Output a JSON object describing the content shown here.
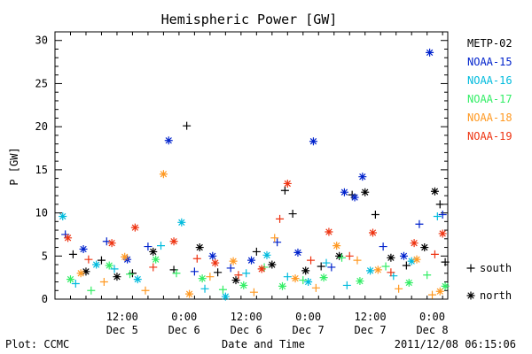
{
  "chart_data": {
    "type": "scatter",
    "title": "Hemispheric Power [GW]",
    "ylabel": "P [GW]",
    "xlabel": "Date and Time",
    "ylim": [
      0,
      31
    ],
    "yticks": [
      0,
      5,
      10,
      15,
      20,
      25,
      30
    ],
    "xlim": [
      "2011-12-04T23:00",
      "2011-12-08T03:00"
    ],
    "xticks": [
      {
        "time": "2011-12-05T12:00",
        "line1": "12:00",
        "line2": "Dec 5"
      },
      {
        "time": "2011-12-06T00:00",
        "line1": "0:00",
        "line2": "Dec 6"
      },
      {
        "time": "2011-12-06T12:00",
        "line1": "12:00",
        "line2": "Dec 6"
      },
      {
        "time": "2011-12-07T00:00",
        "line1": "0:00",
        "line2": "Dec 7"
      },
      {
        "time": "2011-12-07T12:00",
        "line1": "12:00",
        "line2": "Dec 7"
      },
      {
        "time": "2011-12-08T00:00",
        "line1": "0:00",
        "line2": "Dec 8"
      }
    ],
    "grid": false,
    "legend_position": "right",
    "marker_legend": [
      {
        "symbol": "+",
        "label": "south"
      },
      {
        "symbol": "*",
        "label": "north"
      }
    ],
    "series": [
      {
        "name": "METP-02",
        "color": "#000000",
        "points": [
          [
            "2011-12-05T02:30",
            5.2,
            "+"
          ],
          [
            "2011-12-05T05:00",
            3.2,
            "*"
          ],
          [
            "2011-12-05T08:00",
            4.5,
            "+"
          ],
          [
            "2011-12-05T11:00",
            2.6,
            "*"
          ],
          [
            "2011-12-05T14:00",
            3.0,
            "+"
          ],
          [
            "2011-12-05T18:00",
            5.5,
            "*"
          ],
          [
            "2011-12-05T22:00",
            3.4,
            "+"
          ],
          [
            "2011-12-06T00:30",
            20.1,
            "+"
          ],
          [
            "2011-12-06T03:00",
            6.0,
            "*"
          ],
          [
            "2011-12-06T06:30",
            3.1,
            "+"
          ],
          [
            "2011-12-06T10:00",
            2.2,
            "*"
          ],
          [
            "2011-12-06T14:00",
            5.5,
            "+"
          ],
          [
            "2011-12-06T17:00",
            4.0,
            "*"
          ],
          [
            "2011-12-06T19:30",
            12.6,
            "+"
          ],
          [
            "2011-12-06T21:00",
            9.9,
            "+"
          ],
          [
            "2011-12-06T23:30",
            3.3,
            "*"
          ],
          [
            "2011-12-07T02:30",
            3.8,
            "+"
          ],
          [
            "2011-12-07T06:00",
            5.0,
            "*"
          ],
          [
            "2011-12-07T08:30",
            12.1,
            "+"
          ],
          [
            "2011-12-07T11:00",
            12.4,
            "*"
          ],
          [
            "2011-12-07T13:00",
            9.8,
            "+"
          ],
          [
            "2011-12-07T16:00",
            4.8,
            "*"
          ],
          [
            "2011-12-07T19:00",
            3.9,
            "+"
          ],
          [
            "2011-12-07T22:30",
            6.0,
            "*"
          ],
          [
            "2011-12-08T00:30",
            12.5,
            "*"
          ],
          [
            "2011-12-08T01:30",
            11.0,
            "+"
          ],
          [
            "2011-12-08T02:30",
            4.3,
            "+"
          ]
        ]
      },
      {
        "name": "NOAA-15",
        "color": "#0022cc",
        "points": [
          [
            "2011-12-05T01:00",
            7.5,
            "+"
          ],
          [
            "2011-12-05T04:30",
            5.8,
            "*"
          ],
          [
            "2011-12-05T09:00",
            6.7,
            "+"
          ],
          [
            "2011-12-05T13:00",
            4.6,
            "*"
          ],
          [
            "2011-12-05T17:00",
            6.1,
            "+"
          ],
          [
            "2011-12-05T21:00",
            18.4,
            "*"
          ],
          [
            "2011-12-06T02:00",
            3.2,
            "+"
          ],
          [
            "2011-12-06T05:30",
            5.0,
            "*"
          ],
          [
            "2011-12-06T09:00",
            3.6,
            "+"
          ],
          [
            "2011-12-06T13:00",
            4.5,
            "*"
          ],
          [
            "2011-12-06T18:00",
            6.6,
            "+"
          ],
          [
            "2011-12-06T22:00",
            5.4,
            "*"
          ],
          [
            "2011-12-07T01:00",
            18.3,
            "*"
          ],
          [
            "2011-12-07T04:30",
            3.7,
            "+"
          ],
          [
            "2011-12-07T07:00",
            12.4,
            "*"
          ],
          [
            "2011-12-07T09:00",
            11.8,
            "*"
          ],
          [
            "2011-12-07T10:30",
            14.2,
            "*"
          ],
          [
            "2011-12-07T14:30",
            6.1,
            "+"
          ],
          [
            "2011-12-07T18:30",
            5.0,
            "*"
          ],
          [
            "2011-12-07T21:30",
            8.7,
            "+"
          ],
          [
            "2011-12-07T23:30",
            28.6,
            "*"
          ],
          [
            "2011-12-08T02:00",
            9.8,
            "+"
          ]
        ]
      },
      {
        "name": "NOAA-16",
        "color": "#00bbdd",
        "points": [
          [
            "2011-12-05T00:30",
            9.6,
            "*"
          ],
          [
            "2011-12-05T03:00",
            1.8,
            "+"
          ],
          [
            "2011-12-05T07:00",
            4.0,
            "*"
          ],
          [
            "2011-12-05T10:30",
            3.5,
            "+"
          ],
          [
            "2011-12-05T15:00",
            2.3,
            "*"
          ],
          [
            "2011-12-05T19:30",
            6.2,
            "+"
          ],
          [
            "2011-12-05T23:30",
            8.9,
            "*"
          ],
          [
            "2011-12-06T04:00",
            1.2,
            "+"
          ],
          [
            "2011-12-06T08:00",
            0.3,
            "*"
          ],
          [
            "2011-12-06T12:00",
            3.0,
            "+"
          ],
          [
            "2011-12-06T16:00",
            5.1,
            "*"
          ],
          [
            "2011-12-06T20:00",
            2.6,
            "+"
          ],
          [
            "2011-12-07T00:00",
            2.0,
            "*"
          ],
          [
            "2011-12-07T03:30",
            4.2,
            "+"
          ],
          [
            "2011-12-07T07:30",
            1.6,
            "+"
          ],
          [
            "2011-12-07T12:00",
            3.3,
            "*"
          ],
          [
            "2011-12-07T16:30",
            2.7,
            "+"
          ],
          [
            "2011-12-07T20:00",
            4.4,
            "*"
          ],
          [
            "2011-12-08T01:00",
            9.6,
            "+"
          ]
        ]
      },
      {
        "name": "NOAA-17",
        "color": "#33ee66",
        "points": [
          [
            "2011-12-05T02:00",
            2.3,
            "*"
          ],
          [
            "2011-12-05T06:00",
            1.0,
            "+"
          ],
          [
            "2011-12-05T09:30",
            3.9,
            "*"
          ],
          [
            "2011-12-05T13:30",
            2.9,
            "+"
          ],
          [
            "2011-12-05T18:30",
            4.6,
            "*"
          ],
          [
            "2011-12-05T22:30",
            3.0,
            "+"
          ],
          [
            "2011-12-06T03:30",
            2.4,
            "*"
          ],
          [
            "2011-12-06T07:30",
            1.1,
            "+"
          ],
          [
            "2011-12-06T11:30",
            1.6,
            "*"
          ],
          [
            "2011-12-06T15:30",
            3.7,
            "+"
          ],
          [
            "2011-12-06T19:00",
            1.5,
            "*"
          ],
          [
            "2011-12-06T23:00",
            2.2,
            "+"
          ],
          [
            "2011-12-07T03:00",
            2.5,
            "*"
          ],
          [
            "2011-12-07T06:30",
            4.8,
            "+"
          ],
          [
            "2011-12-07T10:00",
            2.1,
            "*"
          ],
          [
            "2011-12-07T15:00",
            3.8,
            "+"
          ],
          [
            "2011-12-07T19:30",
            1.9,
            "*"
          ],
          [
            "2011-12-07T23:00",
            2.8,
            "+"
          ],
          [
            "2011-12-08T02:30",
            1.5,
            "*"
          ]
        ]
      },
      {
        "name": "NOAA-18",
        "color": "#ff9922",
        "points": [
          [
            "2011-12-05T04:00",
            3.0,
            "*"
          ],
          [
            "2011-12-05T08:30",
            2.0,
            "+"
          ],
          [
            "2011-12-05T12:30",
            4.9,
            "*"
          ],
          [
            "2011-12-05T16:30",
            1.0,
            "+"
          ],
          [
            "2011-12-05T20:00",
            14.5,
            "*"
          ],
          [
            "2011-12-06T01:00",
            0.6,
            "*"
          ],
          [
            "2011-12-06T05:00",
            2.6,
            "+"
          ],
          [
            "2011-12-06T09:30",
            4.4,
            "*"
          ],
          [
            "2011-12-06T13:30",
            0.8,
            "+"
          ],
          [
            "2011-12-06T17:30",
            7.1,
            "+"
          ],
          [
            "2011-12-06T21:30",
            2.4,
            "*"
          ],
          [
            "2011-12-07T01:30",
            1.3,
            "+"
          ],
          [
            "2011-12-07T05:30",
            6.2,
            "*"
          ],
          [
            "2011-12-07T09:30",
            4.5,
            "+"
          ],
          [
            "2011-12-07T13:30",
            3.4,
            "*"
          ],
          [
            "2011-12-07T17:30",
            1.2,
            "+"
          ],
          [
            "2011-12-07T21:00",
            4.6,
            "*"
          ],
          [
            "2011-12-08T00:00",
            0.5,
            "+"
          ],
          [
            "2011-12-08T01:30",
            0.9,
            "*"
          ]
        ]
      },
      {
        "name": "NOAA-19",
        "color": "#ee3311",
        "points": [
          [
            "2011-12-05T01:30",
            7.1,
            "*"
          ],
          [
            "2011-12-05T05:30",
            4.6,
            "+"
          ],
          [
            "2011-12-05T10:00",
            6.5,
            "*"
          ],
          [
            "2011-12-05T14:30",
            8.3,
            "*"
          ],
          [
            "2011-12-05T18:00",
            3.7,
            "+"
          ],
          [
            "2011-12-05T22:00",
            6.7,
            "*"
          ],
          [
            "2011-12-06T02:30",
            4.7,
            "+"
          ],
          [
            "2011-12-06T06:00",
            4.2,
            "*"
          ],
          [
            "2011-12-06T10:30",
            2.8,
            "+"
          ],
          [
            "2011-12-06T15:00",
            3.5,
            "*"
          ],
          [
            "2011-12-06T18:30",
            9.3,
            "+"
          ],
          [
            "2011-12-06T20:00",
            13.4,
            "*"
          ],
          [
            "2011-12-07T00:30",
            4.5,
            "+"
          ],
          [
            "2011-12-07T04:00",
            7.8,
            "*"
          ],
          [
            "2011-12-07T08:00",
            5.0,
            "+"
          ],
          [
            "2011-12-07T12:30",
            7.7,
            "*"
          ],
          [
            "2011-12-07T16:00",
            3.1,
            "+"
          ],
          [
            "2011-12-07T20:30",
            6.5,
            "*"
          ],
          [
            "2011-12-08T00:30",
            5.2,
            "+"
          ],
          [
            "2011-12-08T02:00",
            7.6,
            "*"
          ]
        ]
      }
    ]
  },
  "footer": {
    "plot_credit": "Plot: CCMC",
    "timestamp": "2011/12/08 06:15:06"
  }
}
